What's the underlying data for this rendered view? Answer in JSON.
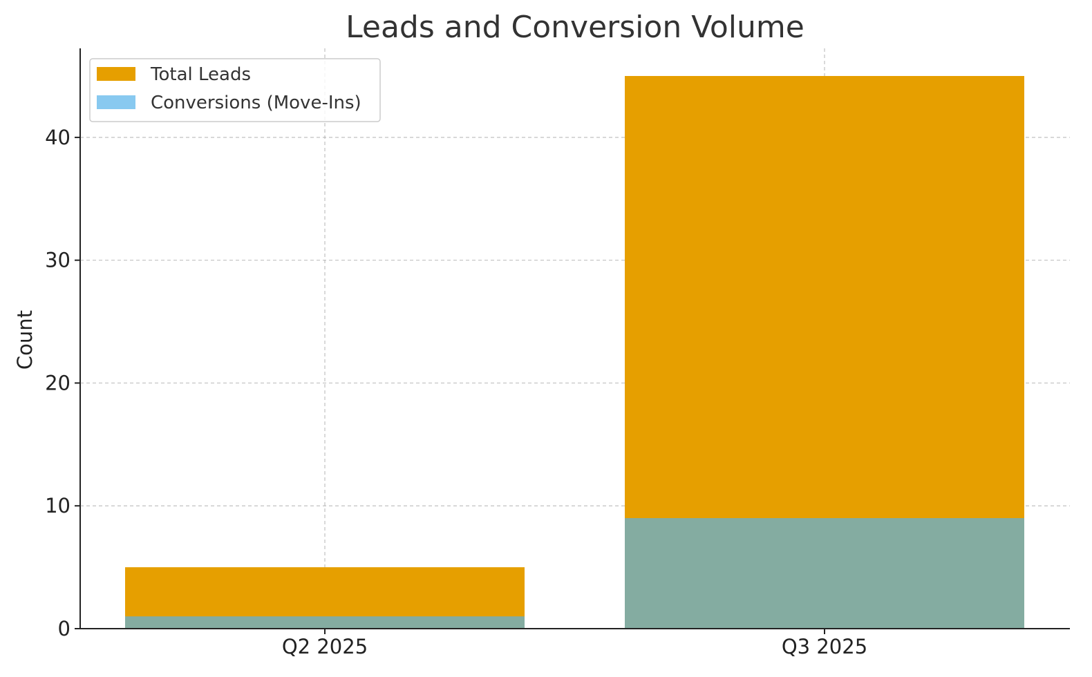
{
  "chart_data": {
    "type": "bar",
    "title": "Leads and Conversion Volume",
    "xlabel": "",
    "ylabel": "Count",
    "categories": [
      "Q2 2025",
      "Q3 2025"
    ],
    "series": [
      {
        "name": "Total Leads",
        "values": [
          5,
          45
        ],
        "color": "#E69F00"
      },
      {
        "name": "Conversions (Move-Ins)",
        "values": [
          1,
          9
        ],
        "color": "#88C9F0",
        "rendered_color": "#84ACA1"
      }
    ],
    "overlay": true,
    "ylim": [
      0,
      47.25
    ],
    "yticks": [
      0,
      10,
      20,
      30,
      40
    ],
    "grid": true,
    "legend_position": "top-left"
  }
}
